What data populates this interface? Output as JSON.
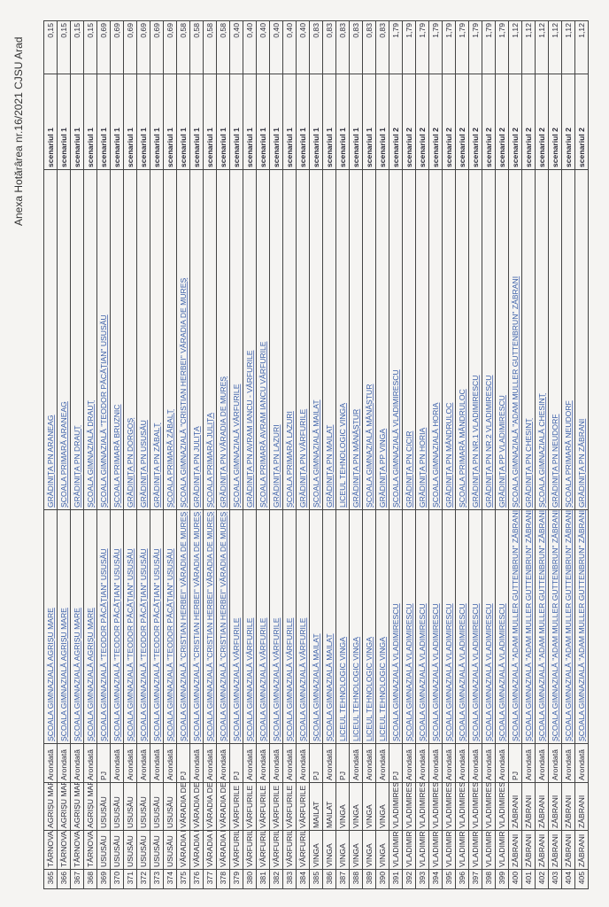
{
  "header": {
    "title": "Anexa Hotărârea nr.16/2021 CJSU Arad"
  },
  "rows": [
    {
      "nr": "365",
      "loc": "TÂRNOVA",
      "uat": "AGRIȘU MARE",
      "tip": "Arondată",
      "unit": "ȘCOALA GIMNAZIALĂ AGRIȘU MARE",
      "struct": "GRĂDINIȚA PN ARANEAG",
      "scen": "scenariul 1",
      "val": "0,15"
    },
    {
      "nr": "366",
      "loc": "TÂRNOVA",
      "uat": "AGRIȘU MARE",
      "tip": "Arondată",
      "unit": "ȘCOALA GIMNAZIALĂ AGRIȘU MARE",
      "struct": "ȘCOALA PRIMARĂ ARANEAG",
      "scen": "scenariul 1",
      "val": "0,15"
    },
    {
      "nr": "367",
      "loc": "TÂRNOVA",
      "uat": "AGRIȘU MARE",
      "tip": "Arondată",
      "unit": "ȘCOALA GIMNAZIALĂ AGRIȘU MARE",
      "struct": "GRĂDINIȚA PN DRAUȚ",
      "scen": "scenariul 1",
      "val": "0,15"
    },
    {
      "nr": "368",
      "loc": "TÂRNOVA",
      "uat": "AGRIȘU MARE",
      "tip": "Arondată",
      "unit": "ȘCOALA GIMNAZIALĂ AGRIȘU MARE",
      "struct": "ȘCOALA GIMNAZIALĂ DRAUȚ",
      "scen": "scenariul 1",
      "val": "0,15"
    },
    {
      "nr": "369",
      "loc": "USUSĂU",
      "uat": "USUSĂU",
      "tip": "PJ",
      "unit": "ȘCOALA GIMNAZIALĂ \"TEODOR PĂCĂȚIAN\" USUSĂU",
      "struct": "ȘCOALA GIMNAZIALĂ \"TEODOR PĂCĂȚIAN\" USUSĂU",
      "scen": "scenariul 1",
      "val": "0,69"
    },
    {
      "nr": "370",
      "loc": "USUSĂU",
      "uat": "USUSĂU",
      "tip": "Arondată",
      "unit": "ȘCOALA GIMNAZIALĂ \"TEODOR PĂCĂȚIAN\" USUSĂU",
      "struct": "ȘCOALA PRIMARĂ BRUZNIC",
      "scen": "scenariul 1",
      "val": "0,69"
    },
    {
      "nr": "371",
      "loc": "USUSĂU",
      "uat": "USUSĂU",
      "tip": "Arondată",
      "unit": "ȘCOALA GIMNAZIALĂ \"TEODOR PĂCĂȚIAN\" USUSĂU",
      "struct": "GRĂDINIȚA PN DORGOȘ",
      "scen": "scenariul 1",
      "val": "0,69"
    },
    {
      "nr": "372",
      "loc": "USUSĂU",
      "uat": "USUSĂU",
      "tip": "Arondată",
      "unit": "ȘCOALA GIMNAZIALĂ \"TEODOR PĂCĂȚIAN\" USUSĂU",
      "struct": "GRĂDINIȚA PN USUSĂU",
      "scen": "scenariul 1",
      "val": "0,69"
    },
    {
      "nr": "373",
      "loc": "USUSĂU",
      "uat": "USUSĂU",
      "tip": "Arondată",
      "unit": "ȘCOALA GIMNAZIALĂ \"TEODOR PĂCĂȚIAN\" USUSĂU",
      "struct": "GRĂDINIȚA PN ZĂBALȚ",
      "scen": "scenariul 1",
      "val": "0,69"
    },
    {
      "nr": "374",
      "loc": "USUSĂU",
      "uat": "USUSĂU",
      "tip": "Arondată",
      "unit": "ȘCOALA GIMNAZIALĂ \"TEODOR PĂCĂȚIAN\" USUSĂU",
      "struct": "ȘCOALA PRIMARĂ ZĂBALȚ",
      "scen": "scenariul 1",
      "val": "0,69"
    },
    {
      "nr": "375",
      "loc": "VĂRADIA DE MUREȘ",
      "uat": "VĂRADIA DE MUREȘ",
      "tip": "PJ",
      "unit": "ȘCOALA GIMNAZIALĂ \"CRISTIAN HERBEI\" VĂRADIA DE MUREȘ",
      "struct": "ȘCOALA GIMNAZIALĂ \"CRISTIAN HERBEI\" VĂRADIA DE MUREȘ",
      "scen": "scenariul 1",
      "val": "0,58"
    },
    {
      "nr": "376",
      "loc": "VĂRADIA DE MUREȘ",
      "uat": "VĂRADIA DE MUREȘ",
      "tip": "Arondată",
      "unit": "ȘCOALA GIMNAZIALĂ \"CRISTIAN HERBEI\" VĂRADIA DE MUREȘ",
      "struct": "GRĂDINIȚA PN JULIȚA",
      "scen": "scenariul 1",
      "val": "0,58"
    },
    {
      "nr": "377",
      "loc": "VĂRADIA DE MUREȘ",
      "uat": "VĂRADIA DE MUREȘ",
      "tip": "Arondată",
      "unit": "ȘCOALA GIMNAZIALĂ \"CRISTIAN HERBEI\" VĂRADIA DE MUREȘ",
      "struct": "ȘCOALA PRIMARĂ JULIȚA",
      "scen": "scenariul 1",
      "val": "0,58"
    },
    {
      "nr": "378",
      "loc": "VĂRADIA DE MUREȘ",
      "uat": "VĂRADIA DE MUREȘ",
      "tip": "Arondată",
      "unit": "ȘCOALA GIMNAZIALĂ \"CRISTIAN HERBEI\" VĂRADIA DE MUREȘ",
      "struct": "GRĂDINIȚA PN VĂRADIA DE MUREȘ",
      "scen": "scenariul 1",
      "val": "0,58"
    },
    {
      "nr": "379",
      "loc": "VÂRFURILE",
      "uat": "VÂRFURILE",
      "tip": "PJ",
      "unit": "ȘCOALA GIMNAZIALĂ VÂRFURILE",
      "struct": "ȘCOALA GIMNAZIALĂ VÂRFURILE",
      "scen": "scenariul 1",
      "val": "0,40"
    },
    {
      "nr": "380",
      "loc": "VÂRFURILE",
      "uat": "VÂRFURILE",
      "tip": "Arondată",
      "unit": "ȘCOALA GIMNAZIALĂ VÂRFURILE",
      "struct": "GRĂDINIȚA PN AVRAM IANCU - VÂRFURILE",
      "scen": "scenariul 1",
      "val": "0,40"
    },
    {
      "nr": "381",
      "loc": "VÂRFURILE",
      "uat": "VÂRFURILE",
      "tip": "Arondată",
      "unit": "ȘCOALA GIMNAZIALĂ VÂRFURILE",
      "struct": "ȘCOALA PRIMARĂ AVRAM IANCU VÂRFURILE",
      "scen": "scenariul 1",
      "val": "0,40"
    },
    {
      "nr": "382",
      "loc": "VÂRFURILE",
      "uat": "VÂRFURILE",
      "tip": "Arondată",
      "unit": "ȘCOALA GIMNAZIALĂ VÂRFURILE",
      "struct": "GRĂDINIȚA PN LAZURI",
      "scen": "scenariul 1",
      "val": "0,40"
    },
    {
      "nr": "383",
      "loc": "VÂRFURILE",
      "uat": "VÂRFURILE",
      "tip": "Arondată",
      "unit": "ȘCOALA GIMNAZIALĂ VÂRFURILE",
      "struct": "ȘCOALA PRIMARĂ LAZURI",
      "scen": "scenariul 1",
      "val": "0,40"
    },
    {
      "nr": "384",
      "loc": "VÂRFURILE",
      "uat": "VÂRFURILE",
      "tip": "Arondată",
      "unit": "ȘCOALA GIMNAZIALĂ VÂRFURILE",
      "struct": "GRĂDINIȚA PN VÂRFURILE",
      "scen": "scenariul 1",
      "val": "0,40"
    },
    {
      "nr": "385",
      "loc": "VINGA",
      "uat": "MAILAT",
      "tip": "PJ",
      "unit": "ȘCOALA GIMNAZIALĂ MAILAT",
      "struct": "ȘCOALA GIMNAZIALĂ MAILAT",
      "scen": "scenariul 1",
      "val": "0,83"
    },
    {
      "nr": "386",
      "loc": "VINGA",
      "uat": "MAILAT",
      "tip": "Arondată",
      "unit": "ȘCOALA GIMNAZIALĂ MAILAT",
      "struct": "GRĂDINIȚA PN MAILAT",
      "scen": "scenariul 1",
      "val": "0,83"
    },
    {
      "nr": "387",
      "loc": "VINGA",
      "uat": "VINGA",
      "tip": "PJ",
      "unit": "LICEUL TEHNOLOGIC VINGA",
      "struct": "LICEUL TEHNOLOGIC VINGA",
      "scen": "scenariul 1",
      "val": "0,83"
    },
    {
      "nr": "388",
      "loc": "VINGA",
      "uat": "VINGA",
      "tip": "Arondată",
      "unit": "LICEUL TEHNOLOGIC VINGA",
      "struct": "GRĂDINIȚA PN MÂNĂȘTUR",
      "scen": "scenariul 1",
      "val": "0,83"
    },
    {
      "nr": "389",
      "loc": "VINGA",
      "uat": "VINGA",
      "tip": "Arondată",
      "unit": "LICEUL TEHNOLOGIC VINGA",
      "struct": "ȘCOALA GIMNAZIALĂ MÂNĂȘTUR",
      "scen": "scenariul 1",
      "val": "0,83"
    },
    {
      "nr": "390",
      "loc": "VINGA",
      "uat": "VINGA",
      "tip": "Arondată",
      "unit": "LICEUL TEHNOLOGIC VINGA",
      "struct": "GRĂDINIȚA PP VINGA",
      "scen": "scenariul 1",
      "val": "0,83"
    },
    {
      "nr": "391",
      "loc": "VLADIMIRESCU",
      "uat": "VLADIMIRESCU",
      "tip": "PJ",
      "unit": "ȘCOALA GIMNAZIALĂ VLADIMIRESCU",
      "struct": "ȘCOALA GIMNAZIALĂ VLADIMIRESCU",
      "scen": "scenariul 2",
      "val": "1,79"
    },
    {
      "nr": "392",
      "loc": "VLADIMIRESCU",
      "uat": "VLADIMIRESCU",
      "tip": "Arondată",
      "unit": "ȘCOALA GIMNAZIALĂ VLADIMIRESCU",
      "struct": "GRĂDINIȚA PN CICIR",
      "scen": "scenariul 2",
      "val": "1,79"
    },
    {
      "nr": "393",
      "loc": "VLADIMIRESCU",
      "uat": "VLADIMIRESCU",
      "tip": "Arondată",
      "unit": "ȘCOALA GIMNAZIALĂ VLADIMIRESCU",
      "struct": "GRĂDINIȚA PN HORIA",
      "scen": "scenariul 2",
      "val": "1,79"
    },
    {
      "nr": "394",
      "loc": "VLADIMIRESCU",
      "uat": "VLADIMIRESCU",
      "tip": "Arondată",
      "unit": "ȘCOALA GIMNAZIALĂ VLADIMIRESCU",
      "struct": "ȘCOALA GIMNAZIALĂ HORIA",
      "scen": "scenariul 2",
      "val": "1,79"
    },
    {
      "nr": "395",
      "loc": "VLADIMIRESCU",
      "uat": "VLADIMIRESCU",
      "tip": "Arondată",
      "unit": "ȘCOALA GIMNAZIALĂ VLADIMIRESCU",
      "struct": "GRĂDINIȚA PN MÂNDRULOC",
      "scen": "scenariul 2",
      "val": "1,79"
    },
    {
      "nr": "396",
      "loc": "VLADIMIRESCU",
      "uat": "VLADIMIRESCU",
      "tip": "Arondată",
      "unit": "ȘCOALA GIMNAZIALĂ VLADIMIRESCU",
      "struct": "ȘCOALA PRIMARĂ MÂNDRULOC",
      "scen": "scenariul 2",
      "val": "1,79"
    },
    {
      "nr": "397",
      "loc": "VLADIMIRESCU",
      "uat": "VLADIMIRESCU",
      "tip": "Arondată",
      "unit": "ȘCOALA GIMNAZIALĂ VLADIMIRESCU",
      "struct": "GRĂDINIȚA PN NR.1 VLADIMIRESCU",
      "scen": "scenariul 2",
      "val": "1,79"
    },
    {
      "nr": "398",
      "loc": "VLADIMIRESCU",
      "uat": "VLADIMIRESCU",
      "tip": "Arondată",
      "unit": "ȘCOALA GIMNAZIALĂ VLADIMIRESCU",
      "struct": "GRĂDINIȚA PN NR.2 VLADIMIRESCU",
      "scen": "scenariul 2",
      "val": "1,79"
    },
    {
      "nr": "399",
      "loc": "VLADIMIRESCU",
      "uat": "VLADIMIRESCU",
      "tip": "Arondată",
      "unit": "ȘCOALA GIMNAZIALĂ VLADIMIRESCU",
      "struct": "GRĂDINIȚA PP VLADIMIRESCU",
      "scen": "scenariul 2",
      "val": "1,79"
    },
    {
      "nr": "400",
      "loc": "ZĂBRANI",
      "uat": "ZĂBRANI",
      "tip": "PJ",
      "unit": "ȘCOALA GIMNAZIALĂ \"ADAM MULLER GUTTENBRUN\" ZĂBRANI",
      "struct": "ȘCOALA GIMNAZIALĂ \"ADAM MULLER GUTTENBRUN\" ZĂBRANI",
      "scen": "scenariul 2",
      "val": "1,12"
    },
    {
      "nr": "401",
      "loc": "ZĂBRANI",
      "uat": "ZĂBRANI",
      "tip": "Arondată",
      "unit": "ȘCOALA GIMNAZIALĂ \"ADAM MULLER GUTTENBRUN\" ZĂBRANI",
      "struct": "GRĂDINIȚA PN CHESINȚ",
      "scen": "scenariul 2",
      "val": "1,12"
    },
    {
      "nr": "402",
      "loc": "ZĂBRANI",
      "uat": "ZĂBRANI",
      "tip": "Arondată",
      "unit": "ȘCOALA GIMNAZIALĂ \"ADAM MULLER GUTTENBRUN\" ZĂBRANI",
      "struct": "ȘCOALA GIMNAZIALĂ CHESINȚ",
      "scen": "scenariul 2",
      "val": "1,12"
    },
    {
      "nr": "403",
      "loc": "ZĂBRANI",
      "uat": "ZĂBRANI",
      "tip": "Arondată",
      "unit": "ȘCOALA GIMNAZIALĂ \"ADAM MULLER GUTTENBRUN\" ZĂBRANI",
      "struct": "GRĂDINIȚA PN NEUDORF",
      "scen": "scenariul 2",
      "val": "1,12"
    },
    {
      "nr": "404",
      "loc": "ZĂBRANI",
      "uat": "ZĂBRANI",
      "tip": "Arondată",
      "unit": "ȘCOALA GIMNAZIALĂ \"ADAM MULLER GUTTENBRUN\" ZĂBRANI",
      "struct": "ȘCOALA PRIMARĂ NEUDORF",
      "scen": "scenariul 2",
      "val": "1,12"
    },
    {
      "nr": "405",
      "loc": "ZĂBRANI",
      "uat": "ZĂBRANI",
      "tip": "Arondată",
      "unit": "ȘCOALA GIMNAZIALĂ \"ADAM MULLER GUTTENBRUN\" ZĂBRANI",
      "struct": "GRĂDINIȚA PN ZĂBRANI",
      "scen": "scenariul 2",
      "val": "1,12"
    }
  ]
}
